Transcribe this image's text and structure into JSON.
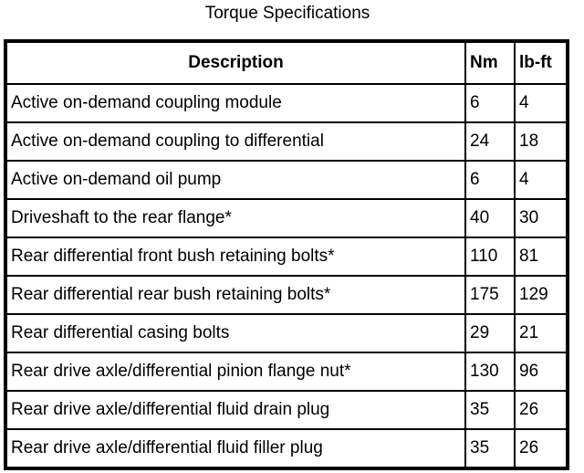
{
  "title": "Torque Specifications",
  "headers": {
    "description": "Description",
    "nm": "Nm",
    "lbft": "lb-ft"
  },
  "rows": [
    {
      "description": "Active on-demand coupling module",
      "nm": "6",
      "lbft": "4"
    },
    {
      "description": "Active on-demand coupling to differential",
      "nm": "24",
      "lbft": "18"
    },
    {
      "description": "Active on-demand oil pump",
      "nm": "6",
      "lbft": "4"
    },
    {
      "description": "Driveshaft to the rear flange*",
      "nm": "40",
      "lbft": "30"
    },
    {
      "description": "Rear differential front bush retaining bolts*",
      "nm": "110",
      "lbft": "81"
    },
    {
      "description": "Rear differential rear bush retaining bolts*",
      "nm": "175",
      "lbft": "129"
    },
    {
      "description": "Rear differential casing bolts",
      "nm": "29",
      "lbft": "21"
    },
    {
      "description": "Rear drive axle/differential pinion flange nut*",
      "nm": "130",
      "lbft": "96"
    },
    {
      "description": "Rear drive axle/differential fluid drain plug",
      "nm": "35",
      "lbft": "26"
    },
    {
      "description": "Rear drive axle/differential fluid filler plug",
      "nm": "35",
      "lbft": "26"
    }
  ]
}
